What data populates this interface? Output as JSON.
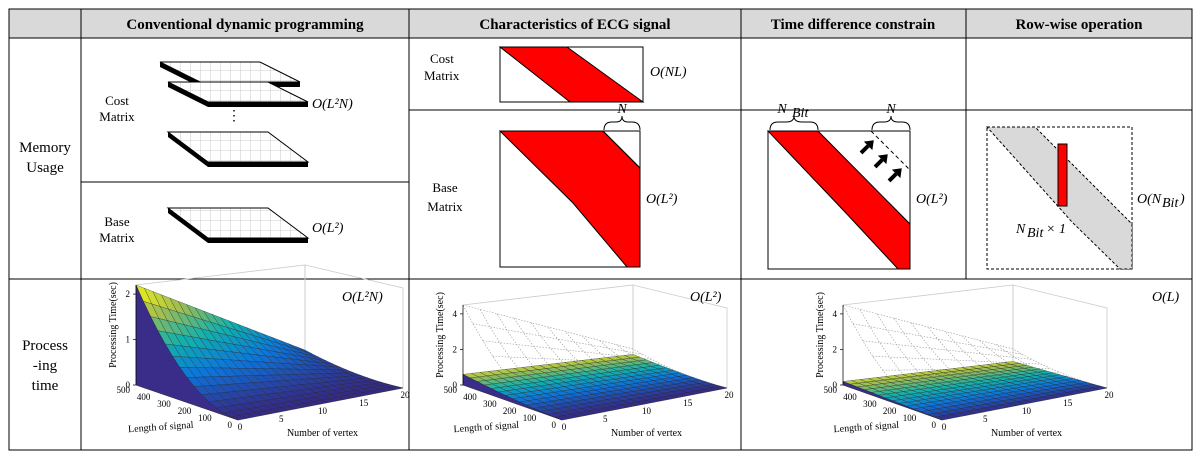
{
  "headers": {
    "col1": "Conventional dynamic programming",
    "col2": "Characteristics of ECG signal",
    "col3": "Time difference constrain",
    "col4": "Row-wise operation"
  },
  "rows": {
    "memory_line1": "Memory",
    "memory_line2": "Usage",
    "process_line1": "Process",
    "process_line2": "-ing",
    "process_line3": "time"
  },
  "labels": {
    "cost_line1": "Cost",
    "cost_line2": "Matrix",
    "base_line1": "Base",
    "base_line2": "Matrix",
    "n": "N",
    "n_bit": "N",
    "n_bit_sub": "Bit",
    "dots": "⋮",
    "times_one": "× 1"
  },
  "complexity": {
    "conv_cost": "O(L²N)",
    "conv_base": "O(L²)",
    "ecg_cost": "O(NL)",
    "ecg_base": "O(L²)",
    "time_base": "O(L²)",
    "row_base_prefix": "O(N",
    "row_base_suffix": ")",
    "plot1": "O(L²N)",
    "plot2": "O(L²)",
    "plot3": "O(L)"
  },
  "colors": {
    "red": "#ff0000",
    "gray": "#d9d9d9",
    "header_bg": "#d9d9d9"
  },
  "chart_data": [
    {
      "type": "surface",
      "title": "O(L²N)",
      "xlabel": "Number of vertex",
      "ylabel": "Length of signal",
      "zlabel": "Processing Time(sec)",
      "x_ticks": [
        "0",
        "5",
        "10",
        "15",
        "20"
      ],
      "y_ticks": [
        "500",
        "400",
        "300",
        "200",
        "100",
        "0"
      ],
      "z_ticks": [
        "0",
        "1",
        "2"
      ],
      "zlim": [
        0,
        2.2
      ],
      "corner_values": {
        "min": 0,
        "max": 2.2
      }
    },
    {
      "type": "surface",
      "title": "O(L²)",
      "xlabel": "Number of vertex",
      "ylabel": "Length of signal",
      "zlabel": "Processing Time(sec)",
      "x_ticks": [
        "0",
        "5",
        "10",
        "15",
        "20"
      ],
      "y_ticks": [
        "500",
        "400",
        "300",
        "200",
        "100",
        "0"
      ],
      "z_ticks": [
        "0",
        "2",
        "4"
      ],
      "zlim": [
        0,
        4.5
      ],
      "corner_values": {
        "min": 0,
        "max": 0.6
      }
    },
    {
      "type": "surface",
      "title": "O(L)",
      "xlabel": "Number of vertex",
      "ylabel": "Length of signal",
      "zlabel": "Processing Time(sec)",
      "x_ticks": [
        "0",
        "5",
        "10",
        "15",
        "20"
      ],
      "y_ticks": [
        "500",
        "400",
        "300",
        "200",
        "100",
        "0"
      ],
      "z_ticks": [
        "0",
        "2",
        "4"
      ],
      "zlim": [
        0,
        4.5
      ],
      "corner_values": {
        "min": 0,
        "max": 0.2
      }
    }
  ]
}
